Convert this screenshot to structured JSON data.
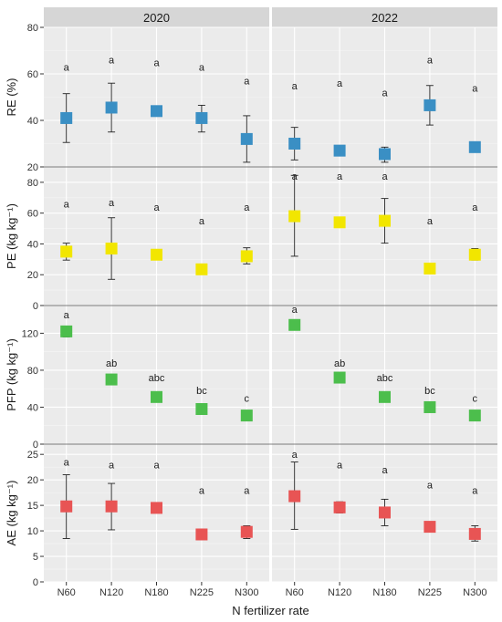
{
  "chart_data": {
    "type": "scatter",
    "facets": [
      "2020",
      "2022"
    ],
    "categories": [
      "N60",
      "N120",
      "N180",
      "N225",
      "N300"
    ],
    "xlabel": "N fertilizer rate",
    "grid": true,
    "panels": [
      {
        "ylabel": "RE (%)",
        "ylim": [
          20,
          80
        ],
        "yticks": [
          20,
          40,
          60,
          80
        ],
        "color": "#3a8fc4",
        "values": {
          "2020": [
            41,
            45.5,
            44,
            41,
            32
          ],
          "2022": [
            30,
            27,
            25.5,
            46.5,
            28.5
          ]
        },
        "errors": {
          "2020": [
            [
              30.5,
              51.5
            ],
            [
              35,
              56
            ],
            [
              42.5,
              45.5
            ],
            [
              35,
              46.5
            ],
            [
              22,
              42
            ]
          ],
          "2022": [
            [
              23,
              37
            ],
            [
              25.5,
              28
            ],
            [
              22,
              28.5
            ],
            [
              38,
              55
            ],
            [
              27.5,
              30
            ]
          ]
        },
        "letters": {
          "2020": [
            "a",
            "a",
            "a",
            "a",
            "a"
          ],
          "2022": [
            "a",
            "a",
            "a",
            "a",
            "a"
          ]
        },
        "letter_y": {
          "2020": [
            63,
            66,
            65,
            63,
            57
          ],
          "2022": [
            55,
            56,
            52,
            66,
            54
          ]
        }
      },
      {
        "ylabel": "PE (kg kg⁻¹)",
        "ylim": [
          0,
          90
        ],
        "yticks": [
          0,
          20,
          40,
          60,
          80
        ],
        "color": "#f2e600",
        "values": {
          "2020": [
            35,
            37,
            33,
            23.5,
            32
          ],
          "2022": [
            58,
            54,
            55,
            24,
            33
          ]
        },
        "errors": {
          "2020": [
            [
              29.5,
              40.5
            ],
            [
              17,
              57
            ],
            [
              30.5,
              35.5
            ],
            [
              21,
              26
            ],
            [
              27,
              37.5
            ]
          ],
          "2022": [
            [
              32,
              84.5
            ],
            [
              51,
              57
            ],
            [
              40.5,
              69.5
            ],
            [
              21,
              27
            ],
            [
              29.5,
              37
            ]
          ]
        },
        "letters": {
          "2020": [
            "a",
            "a",
            "a",
            "a",
            "a"
          ],
          "2022": [
            "a",
            "a",
            "a",
            "a",
            "a"
          ]
        },
        "letter_y": {
          "2020": [
            66,
            67,
            64,
            55,
            64
          ],
          "2022": [
            84,
            84,
            84,
            55,
            64
          ]
        }
      },
      {
        "ylabel": "PFP (kg kg⁻¹)",
        "ylim": [
          0,
          150
        ],
        "yticks": [
          0,
          40,
          80,
          120
        ],
        "color": "#4cbe4c",
        "values": {
          "2020": [
            122,
            70,
            51,
            38,
            31
          ],
          "2022": [
            129,
            72,
            51,
            40,
            31
          ]
        },
        "errors": {
          "2020": [
            [
              116,
              127
            ],
            [
              66,
              74
            ],
            [
              46,
              56
            ],
            [
              34,
              42
            ],
            [
              27,
              35
            ]
          ],
          "2022": [
            [
              124,
              134
            ],
            [
              67,
              77
            ],
            [
              47,
              55
            ],
            [
              36,
              44
            ],
            [
              27,
              35
            ]
          ]
        },
        "letters": {
          "2020": [
            "a",
            "ab",
            "abc",
            "bc",
            "c"
          ],
          "2022": [
            "a",
            "ab",
            "abc",
            "bc",
            "c"
          ]
        },
        "letter_y": {
          "2020": [
            140,
            88,
            72,
            58,
            50
          ],
          "2022": [
            146,
            88,
            72,
            58,
            50
          ]
        }
      },
      {
        "ylabel": "AE (kg kg⁻¹)",
        "ylim": [
          0,
          27
        ],
        "yticks": [
          0,
          5,
          10,
          15,
          20,
          25
        ],
        "color": "#e85454",
        "values": {
          "2020": [
            14.8,
            14.8,
            14.5,
            9.3,
            9.8
          ],
          "2022": [
            16.8,
            14.6,
            13.6,
            10.8,
            9.4
          ]
        },
        "errors": {
          "2020": [
            [
              8.5,
              21
            ],
            [
              10.2,
              19.3
            ],
            [
              13.8,
              15.5
            ],
            [
              8.8,
              9.8
            ],
            [
              8.5,
              11
            ]
          ],
          "2022": [
            [
              10.3,
              23.5
            ],
            [
              13.5,
              15.7
            ],
            [
              11,
              16.2
            ],
            [
              10,
              11.5
            ],
            [
              8,
              11
            ]
          ]
        },
        "letters": {
          "2020": [
            "a",
            "a",
            "a",
            "a",
            "a"
          ],
          "2022": [
            "a",
            "a",
            "a",
            "a",
            "a"
          ]
        },
        "letter_y": {
          "2020": [
            23.5,
            23,
            23,
            18,
            18
          ],
          "2022": [
            25,
            23,
            22,
            19,
            18
          ]
        }
      }
    ]
  }
}
